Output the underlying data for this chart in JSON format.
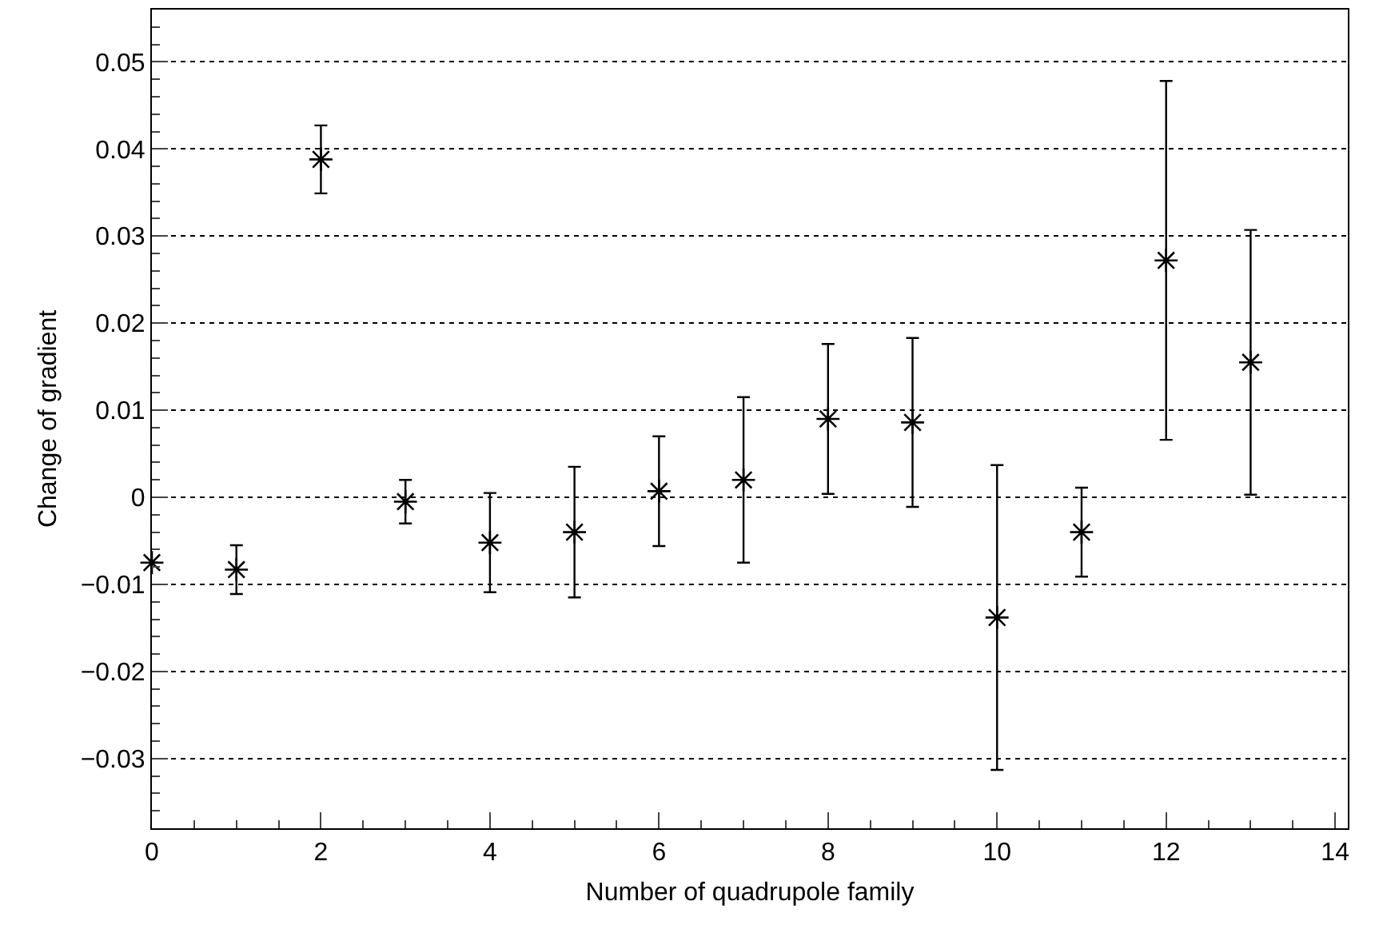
{
  "chart_data": {
    "type": "scatter",
    "xlabel": "Number of quadrupole family",
    "ylabel": "Change of gradient",
    "x": [
      0,
      1,
      2,
      3,
      4,
      5,
      6,
      7,
      8,
      9,
      10,
      11,
      12,
      13
    ],
    "values": [
      -0.0075,
      -0.0083,
      0.0388,
      -0.0005,
      -0.0052,
      -0.004,
      0.0007,
      0.002,
      0.009,
      0.0086,
      -0.0138,
      -0.004,
      0.0272,
      0.0155
    ],
    "errors": [
      null,
      0.0028,
      0.0039,
      0.0025,
      0.0057,
      0.0075,
      0.0063,
      0.0095,
      0.0086,
      0.0097,
      0.0175,
      0.0051,
      0.0206,
      0.0152
    ],
    "color": "#000000",
    "marker": "cross",
    "xlim": [
      0,
      14.15
    ],
    "xticks": [
      0,
      2,
      4,
      6,
      8,
      10,
      12,
      14
    ],
    "ylim": [
      -0.038,
      0.056
    ],
    "yticks": [
      {
        "value": -0.03,
        "label": "−0.03"
      },
      {
        "value": -0.02,
        "label": "−0.02"
      },
      {
        "value": -0.01,
        "label": "−0.01"
      },
      0,
      0.01,
      0.02,
      0.03,
      0.04,
      0.05
    ],
    "grid": "y"
  }
}
